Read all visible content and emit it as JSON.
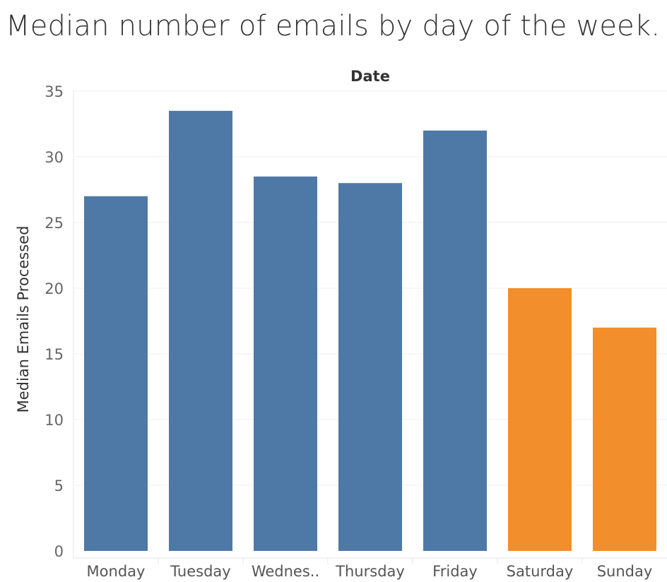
{
  "title": "Median number of emails by day of the week.",
  "chart_data": {
    "type": "bar",
    "column_header": "Date",
    "ylabel": "Median Emails Processed",
    "xlabel": "",
    "categories": [
      "Monday",
      "Tuesday",
      "Wednes..",
      "Thursday",
      "Friday",
      "Saturday",
      "Sunday"
    ],
    "values": [
      27,
      33.5,
      28.5,
      28,
      32,
      20,
      17
    ],
    "colors": [
      "#4e79a7",
      "#4e79a7",
      "#4e79a7",
      "#4e79a7",
      "#4e79a7",
      "#f28e2b",
      "#f28e2b"
    ],
    "ylim": [
      0,
      35
    ],
    "yticks": [
      0,
      5,
      10,
      15,
      20,
      25,
      30,
      35
    ],
    "grid": true,
    "legend": "none"
  }
}
